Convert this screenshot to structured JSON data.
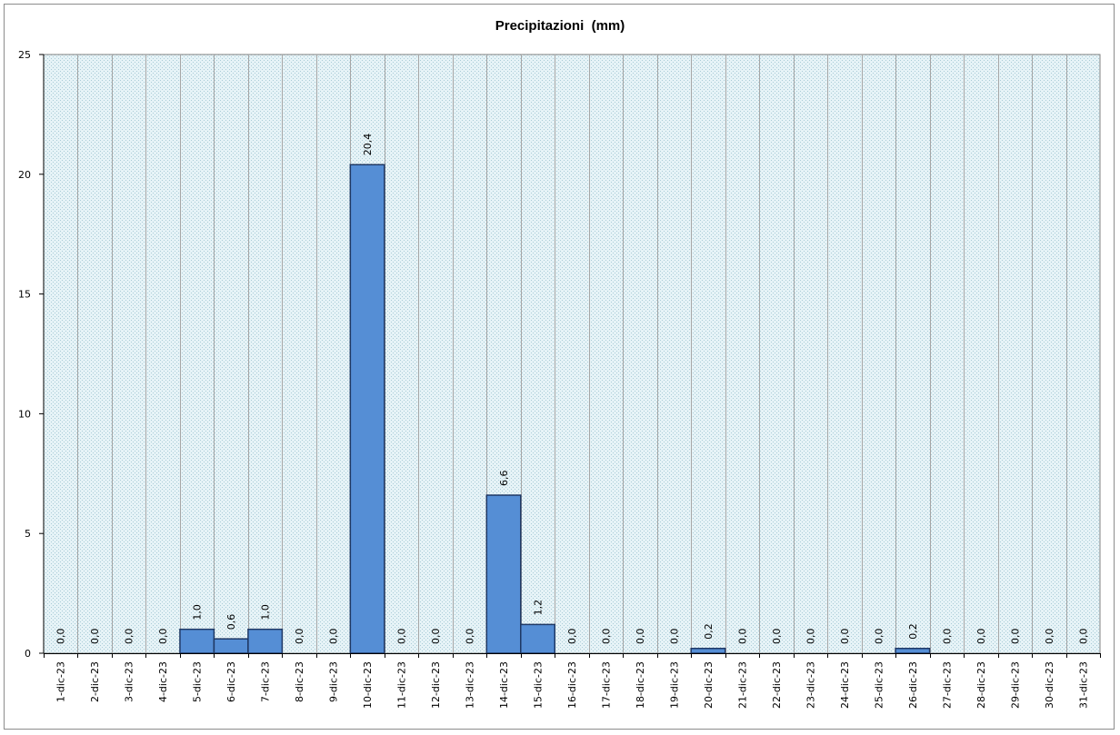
{
  "chart_data": {
    "type": "bar",
    "title": "Precipitazioni  (mm)",
    "xlabel": "",
    "ylabel": "",
    "ylim": [
      0,
      25
    ],
    "yticks": [
      "0",
      "5",
      "10",
      "15",
      "20",
      "25"
    ],
    "grid": "vertical",
    "legend": "none",
    "categories": [
      "1-dic-23",
      "2-dic-23",
      "3-dic-23",
      "4-dic-23",
      "5-dic-23",
      "6-dic-23",
      "7-dic-23",
      "8-dic-23",
      "9-dic-23",
      "10-dic-23",
      "11-dic-23",
      "12-dic-23",
      "13-dic-23",
      "14-dic-23",
      "15-dic-23",
      "16-dic-23",
      "17-dic-23",
      "18-dic-23",
      "19-dic-23",
      "20-dic-23",
      "21-dic-23",
      "22-dic-23",
      "23-dic-23",
      "24-dic-23",
      "25-dic-23",
      "26-dic-23",
      "27-dic-23",
      "28-dic-23",
      "29-dic-23",
      "30-dic-23",
      "31-dic-23"
    ],
    "values": [
      0,
      0,
      0,
      0,
      1.0,
      0.6,
      1.0,
      0,
      0,
      20.4,
      0,
      0,
      0,
      6.6,
      1.2,
      0,
      0,
      0,
      0,
      0.2,
      0,
      0,
      0,
      0,
      0,
      0.2,
      0,
      0,
      0,
      0,
      0
    ],
    "value_labels": [
      "0,0",
      "0,0",
      "0,0",
      "0,0",
      "1,0",
      "0,6",
      "1,0",
      "0,0",
      "0,0",
      "20,4",
      "0,0",
      "0,0",
      "0,0",
      "6,6",
      "1,2",
      "0,0",
      "0,0",
      "0,0",
      "0,0",
      "0,2",
      "0,0",
      "0,0",
      "0,0",
      "0,0",
      "0,0",
      "0,2",
      "0,0",
      "0,0",
      "0,0",
      "0,0",
      "0,0"
    ],
    "colors": {
      "bar_fill": "#558ed5",
      "bar_stroke": "#1f3864",
      "plot_background": "#dbeef3",
      "grid": "#a6a6a6",
      "axis": "#000000"
    }
  }
}
